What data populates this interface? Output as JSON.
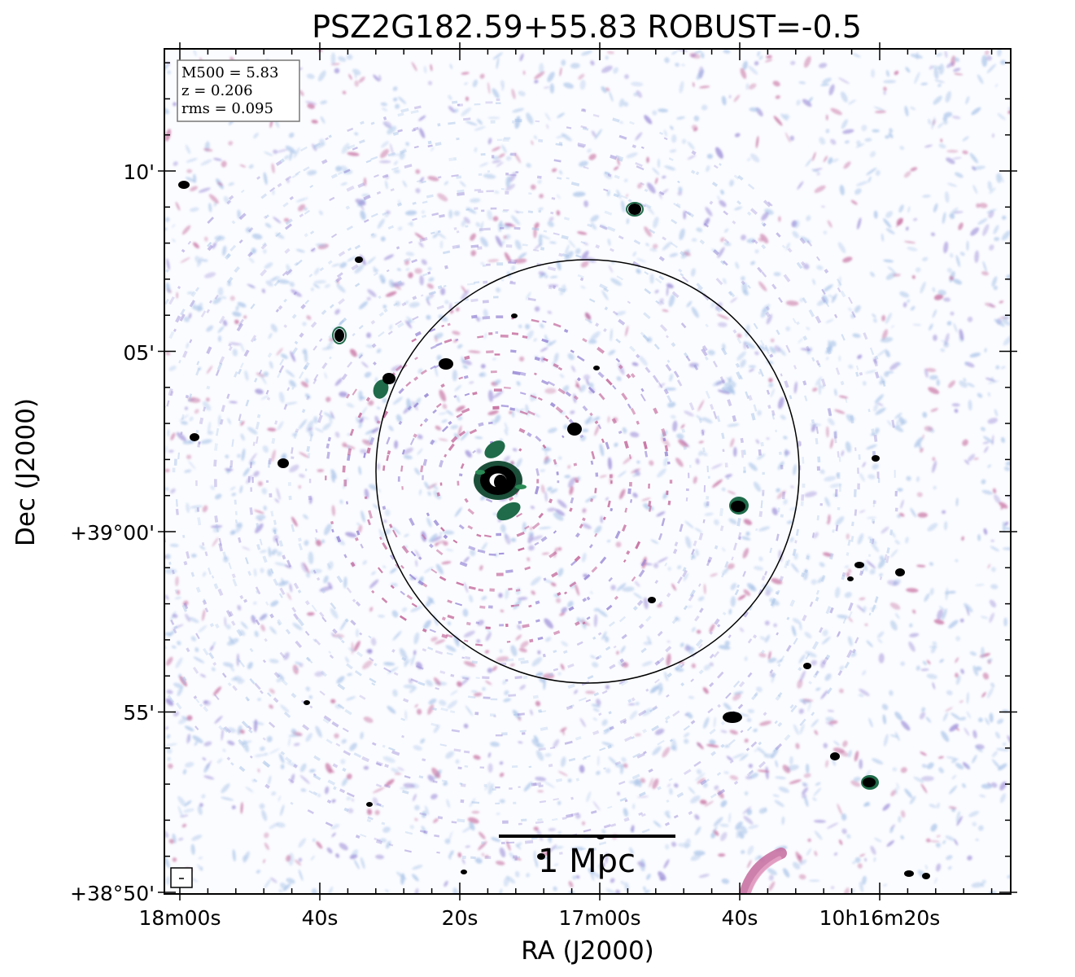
{
  "title": "PSZ2G182.59+55.83 ROBUST=-0.5",
  "axes": {
    "xlabel": "RA (J2000)",
    "ylabel": "Dec (J2000)",
    "x_ticks": [
      "18m00s",
      "40s",
      "20s",
      "17m00s",
      "40s",
      "10h16m20s"
    ],
    "y_ticks": [
      "10'",
      "05'",
      "+39°00'",
      "55'",
      "+38°50'"
    ]
  },
  "info_box": {
    "line1": "M500 = 5.83",
    "line2": "z = 0.206",
    "line3": "rms = 0.095"
  },
  "scale_bar": {
    "label": "1 Mpc"
  },
  "colors": {
    "noise_blue": "#aac4e8",
    "noise_pink": "#c46a9c",
    "noise_purple": "#9a8ad6",
    "source_core": "#000000",
    "source_edge": "#1f6b4a"
  }
}
